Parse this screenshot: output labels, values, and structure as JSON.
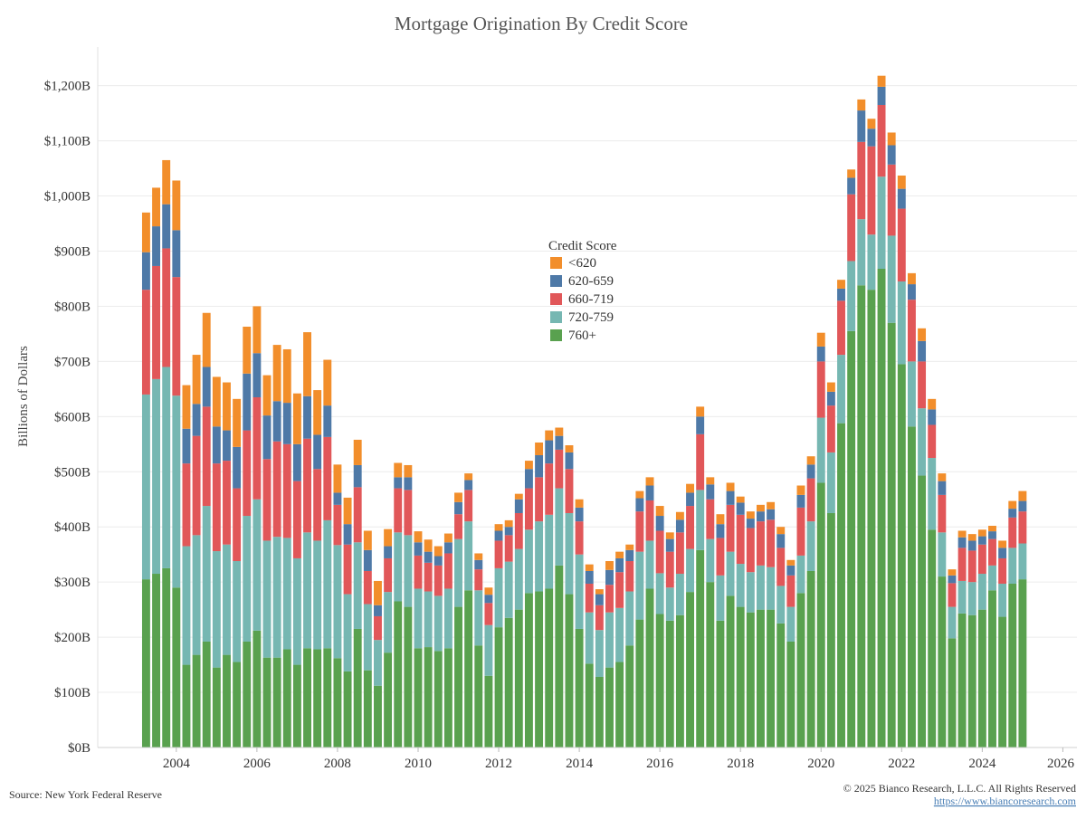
{
  "chart_data": {
    "type": "stacked_bar",
    "title": "Mortgage Origination By Credit Score",
    "ylabel": "Billions of Dollars",
    "source": "Source: New York Federal Reserve",
    "copyright": "© 2025 Bianco Research, L.L.C. All Rights Reserved",
    "url": "https://www.biancoresearch.com",
    "legend_title": "Credit Score",
    "legend": "top-center",
    "grid": true,
    "xlim": [
      2002.05,
      2026.35
    ],
    "xticks": [
      2004,
      2006,
      2008,
      2010,
      2012,
      2014,
      2016,
      2018,
      2020,
      2022,
      2024,
      2026
    ],
    "ylim": [
      0,
      1270
    ],
    "yticks": [
      {
        "value": 0,
        "label": "$0B"
      },
      {
        "value": 100,
        "label": "$100B"
      },
      {
        "value": 200,
        "label": "$200B"
      },
      {
        "value": 300,
        "label": "$300B"
      },
      {
        "value": 400,
        "label": "$400B"
      },
      {
        "value": 500,
        "label": "$500B"
      },
      {
        "value": 600,
        "label": "$600B"
      },
      {
        "value": 700,
        "label": "$700B"
      },
      {
        "value": 800,
        "label": "$800B"
      },
      {
        "value": 900,
        "label": "$900B"
      },
      {
        "value": 1000,
        "label": "$1,000B"
      },
      {
        "value": 1100,
        "label": "$1,100B"
      },
      {
        "value": 1200,
        "label": "$1,200B"
      }
    ],
    "x": [
      2003.25,
      2003.5,
      2003.75,
      2004,
      2004.25,
      2004.5,
      2004.75,
      2005,
      2005.25,
      2005.5,
      2005.75,
      2006,
      2006.25,
      2006.5,
      2006.75,
      2007,
      2007.25,
      2007.5,
      2007.75,
      2008,
      2008.25,
      2008.5,
      2008.75,
      2009,
      2009.25,
      2009.5,
      2009.75,
      2010,
      2010.25,
      2010.5,
      2010.75,
      2011,
      2011.25,
      2011.5,
      2011.75,
      2012,
      2012.25,
      2012.5,
      2012.75,
      2013,
      2013.25,
      2013.5,
      2013.75,
      2014,
      2014.25,
      2014.5,
      2014.75,
      2015,
      2015.25,
      2015.5,
      2015.75,
      2016,
      2016.25,
      2016.5,
      2016.75,
      2017,
      2017.25,
      2017.5,
      2017.75,
      2018,
      2018.25,
      2018.5,
      2018.75,
      2019,
      2019.25,
      2019.5,
      2019.75,
      2020,
      2020.25,
      2020.5,
      2020.75,
      2021,
      2021.25,
      2021.5,
      2021.75,
      2022,
      2022.25,
      2022.5,
      2022.75,
      2023,
      2023.25,
      2023.5,
      2023.75,
      2024,
      2024.25,
      2024.5,
      2024.75,
      2025
    ],
    "series": [
      {
        "name": "760+",
        "color": "#59a14f",
        "values": [
          305,
          315,
          325,
          290,
          150,
          168,
          192,
          145,
          168,
          155,
          192,
          212,
          163,
          163,
          178,
          150,
          180,
          178,
          180,
          162,
          138,
          215,
          140,
          112,
          172,
          265,
          255,
          180,
          182,
          175,
          180,
          255,
          285,
          185,
          130,
          218,
          235,
          250,
          280,
          283,
          288,
          330,
          278,
          215,
          152,
          128,
          145,
          155,
          185,
          232,
          288,
          242,
          230,
          240,
          282,
          358,
          300,
          230,
          275,
          255,
          245,
          250,
          250,
          225,
          192,
          280,
          320,
          480,
          425,
          588,
          755,
          838,
          830,
          868,
          770,
          695,
          582,
          493,
          395,
          310,
          198,
          243,
          240,
          250,
          285,
          237,
          297,
          305
        ]
      },
      {
        "name": "720-759",
        "color": "#76b7b2",
        "values": [
          335,
          353,
          365,
          348,
          215,
          217,
          246,
          211,
          200,
          183,
          228,
          238,
          212,
          219,
          202,
          193,
          210,
          197,
          232,
          205,
          140,
          157,
          120,
          83,
          110,
          125,
          130,
          108,
          101,
          100,
          108,
          123,
          125,
          100,
          92,
          107,
          102,
          110,
          115,
          127,
          134,
          140,
          147,
          135,
          93,
          85,
          100,
          98,
          98,
          123,
          87,
          74,
          60,
          75,
          78,
          109,
          78,
          82,
          80,
          78,
          73,
          80,
          77,
          68,
          63,
          68,
          90,
          118,
          110,
          124,
          127,
          120,
          100,
          167,
          158,
          150,
          118,
          122,
          130,
          80,
          57,
          59,
          60,
          65,
          45,
          60,
          65,
          65
        ]
      },
      {
        "name": "660-719",
        "color": "#e15759",
        "values": [
          190,
          205,
          215,
          215,
          150,
          180,
          180,
          159,
          152,
          132,
          155,
          185,
          148,
          173,
          170,
          140,
          170,
          130,
          151,
          73,
          90,
          100,
          60,
          43,
          61,
          80,
          82,
          60,
          52,
          55,
          64,
          45,
          57,
          38,
          40,
          50,
          48,
          65,
          75,
          80,
          93,
          70,
          80,
          60,
          52,
          45,
          50,
          65,
          55,
          73,
          73,
          77,
          65,
          75,
          78,
          101,
          72,
          68,
          85,
          89,
          80,
          80,
          86,
          69,
          57,
          87,
          78,
          102,
          85,
          98,
          121,
          140,
          160,
          130,
          129,
          132,
          112,
          85,
          60,
          68,
          43,
          60,
          57,
          53,
          48,
          46,
          55,
          58
        ]
      },
      {
        "name": "620-659",
        "color": "#4e79a7",
        "values": [
          68,
          72,
          80,
          85,
          63,
          58,
          72,
          67,
          55,
          75,
          103,
          80,
          79,
          73,
          75,
          67,
          77,
          62,
          57,
          22,
          37,
          40,
          38,
          20,
          22,
          20,
          23,
          24,
          20,
          17,
          20,
          22,
          18,
          17,
          15,
          18,
          15,
          25,
          35,
          40,
          42,
          25,
          30,
          25,
          23,
          20,
          27,
          25,
          20,
          24,
          27,
          27,
          23,
          23,
          24,
          32,
          27,
          25,
          25,
          22,
          17,
          18,
          19,
          25,
          18,
          23,
          25,
          27,
          25,
          22,
          30,
          57,
          32,
          33,
          35,
          36,
          28,
          37,
          28,
          25,
          14,
          19,
          18,
          15,
          14,
          19,
          16,
          19
        ]
      },
      {
        "name": "<620",
        "color": "#f28e2b",
        "values": [
          72,
          70,
          80,
          90,
          79,
          89,
          98,
          90,
          87,
          87,
          85,
          85,
          73,
          102,
          97,
          92,
          116,
          81,
          83,
          51,
          48,
          46,
          35,
          44,
          31,
          26,
          22,
          20,
          22,
          18,
          16,
          17,
          12,
          12,
          13,
          12,
          12,
          10,
          15,
          23,
          18,
          15,
          13,
          15,
          12,
          9,
          16,
          12,
          10,
          13,
          15,
          18,
          12,
          14,
          16,
          18,
          13,
          18,
          15,
          11,
          13,
          12,
          13,
          13,
          10,
          17,
          15,
          25,
          17,
          16,
          15,
          20,
          18,
          20,
          23,
          24,
          20,
          23,
          19,
          14,
          11,
          12,
          12,
          12,
          10,
          13,
          14,
          18
        ]
      }
    ]
  }
}
